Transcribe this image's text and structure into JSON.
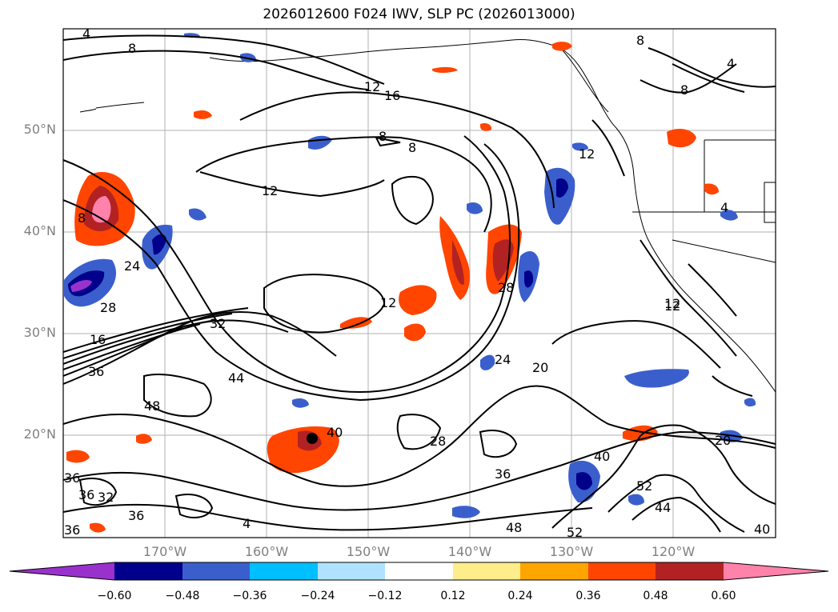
{
  "title": "2026012600 F024 IWV, SLP PC (2026013000)",
  "lat_labels": [
    "50°N",
    "40°N",
    "30°N",
    "20°N"
  ],
  "lon_labels": [
    "170°W",
    "160°W",
    "150°W",
    "140°W",
    "130°W",
    "120°W"
  ],
  "colorbar": {
    "colors": [
      "#9932cc",
      "#00008b",
      "#3a5fcd",
      "#00bfff",
      "#b0e2ff",
      "#ffffff",
      "#ffec8b",
      "#ffa500",
      "#ff4500",
      "#b22222",
      "#ff82ab"
    ],
    "ticks": [
      "−0.60",
      "−0.48",
      "−0.36",
      "−0.24",
      "−0.12",
      "0.12",
      "0.24",
      "0.36",
      "0.48",
      "0.60"
    ]
  },
  "contour_labels": [
    "4",
    "8",
    "12",
    "16",
    "8",
    "8",
    "12",
    "12",
    "8",
    "24",
    "32",
    "36",
    "16",
    "28",
    "44",
    "48",
    "12",
    "12",
    "28",
    "24",
    "20",
    "40",
    "28",
    "36",
    "40",
    "36",
    "32",
    "36",
    "36",
    "4",
    "36",
    "48",
    "52",
    "52",
    "44",
    "40",
    "20",
    "4",
    "8",
    "12",
    "8",
    "4"
  ]
}
